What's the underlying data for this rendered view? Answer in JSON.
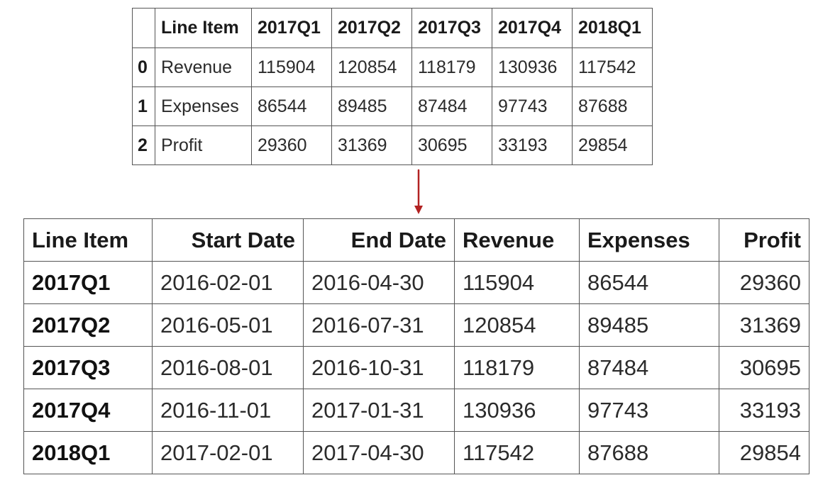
{
  "top_table": {
    "corner": "",
    "columns": [
      "Line Item",
      "2017Q1",
      "2017Q2",
      "2017Q3",
      "2017Q4",
      "2018Q1"
    ],
    "rows": [
      {
        "index": "0",
        "cells": [
          "Revenue",
          "115904",
          "120854",
          "118179",
          "130936",
          "117542"
        ]
      },
      {
        "index": "1",
        "cells": [
          "Expenses",
          "86544",
          "89485",
          "87484",
          "97743",
          "87688"
        ]
      },
      {
        "index": "2",
        "cells": [
          "Profit",
          "29360",
          "31369",
          "30695",
          "33193",
          "29854"
        ]
      }
    ]
  },
  "arrow": {
    "color": "#b22222",
    "icon": "down-arrow-icon"
  },
  "bottom_table": {
    "columns": [
      "Line Item",
      "Start Date",
      "End Date",
      "Revenue",
      "Expenses",
      "Profit"
    ],
    "rows": [
      {
        "cells": [
          "2017Q1",
          "2016-02-01",
          "2016-04-30",
          "115904",
          "86544",
          "29360"
        ]
      },
      {
        "cells": [
          "2017Q2",
          "2016-05-01",
          "2016-07-31",
          "120854",
          "89485",
          "31369"
        ]
      },
      {
        "cells": [
          "2017Q3",
          "2016-08-01",
          "2016-10-31",
          "118179",
          "87484",
          "30695"
        ]
      },
      {
        "cells": [
          "2017Q4",
          "2016-11-01",
          "2017-01-31",
          "130936",
          "97743",
          "33193"
        ]
      },
      {
        "cells": [
          "2018Q1",
          "2017-02-01",
          "2017-04-30",
          "117542",
          "87688",
          "29854"
        ]
      }
    ]
  }
}
